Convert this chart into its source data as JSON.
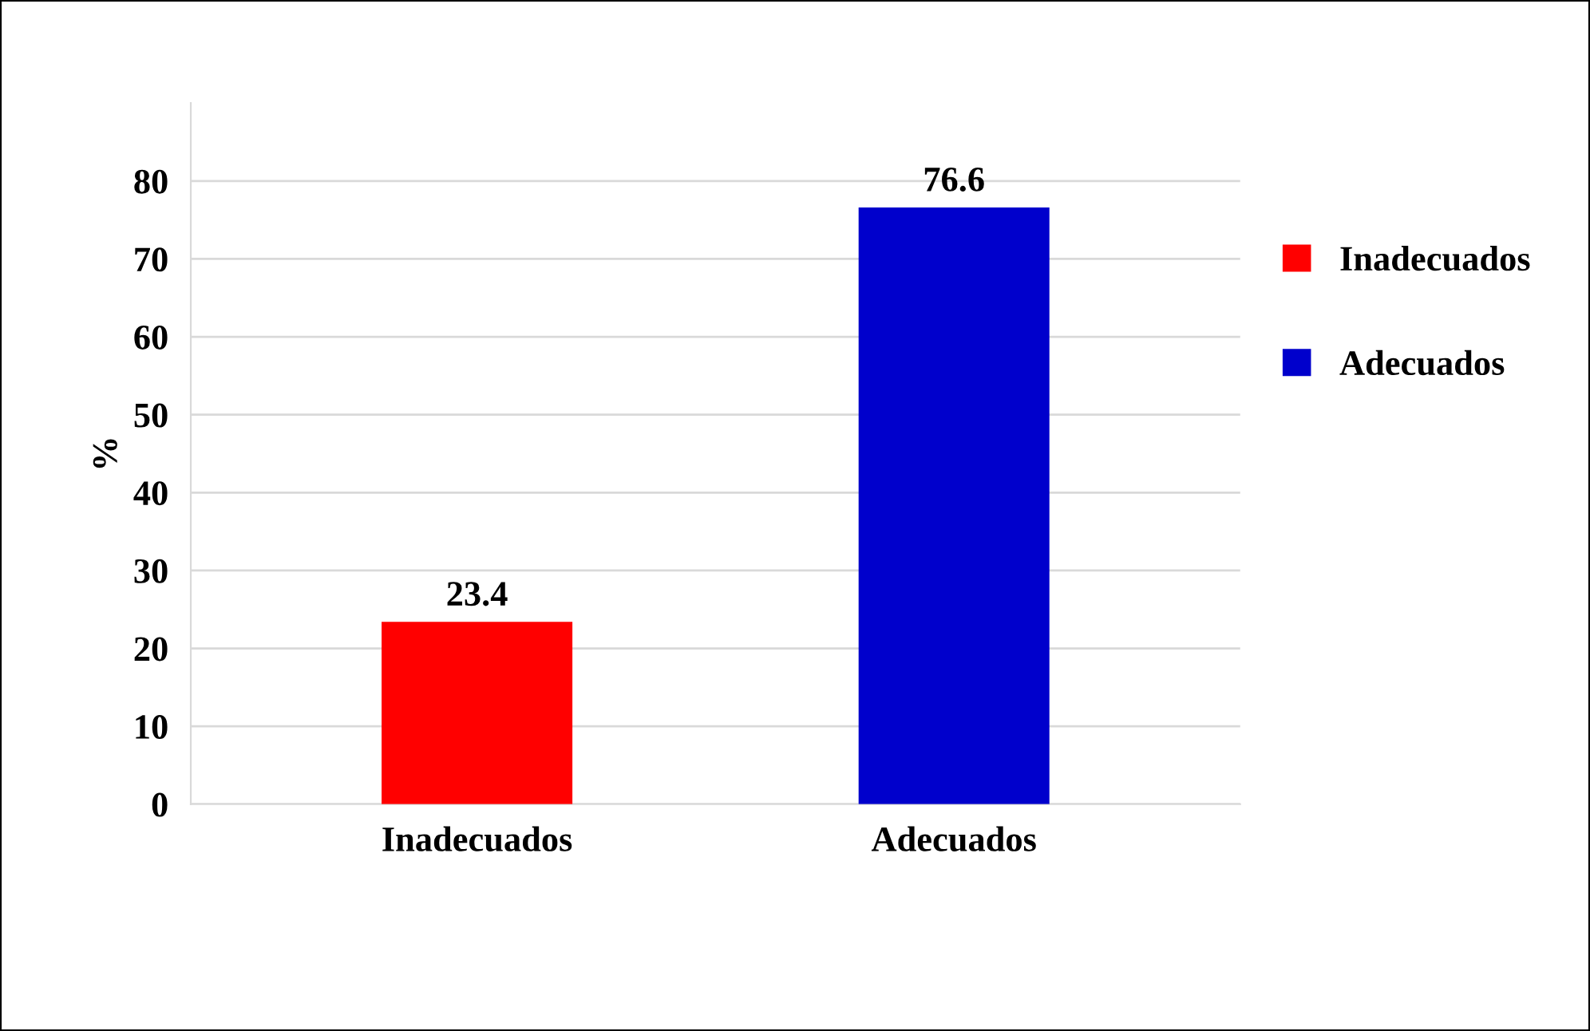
{
  "chart_data": {
    "type": "bar",
    "categories": [
      "Inadecuados",
      "Adecuados"
    ],
    "series": [
      {
        "name": "Inadecuados",
        "color": "#ff0000",
        "values": [
          23.4,
          null
        ]
      },
      {
        "name": "Adecuados",
        "color": "#0000cc",
        "values": [
          null,
          76.6
        ]
      }
    ],
    "ylabel": "%",
    "ylim": [
      0,
      90
    ],
    "yticks": [
      0,
      10,
      20,
      30,
      40,
      50,
      60,
      70,
      80
    ],
    "grid": "y",
    "legend": "right",
    "data_labels": true
  }
}
